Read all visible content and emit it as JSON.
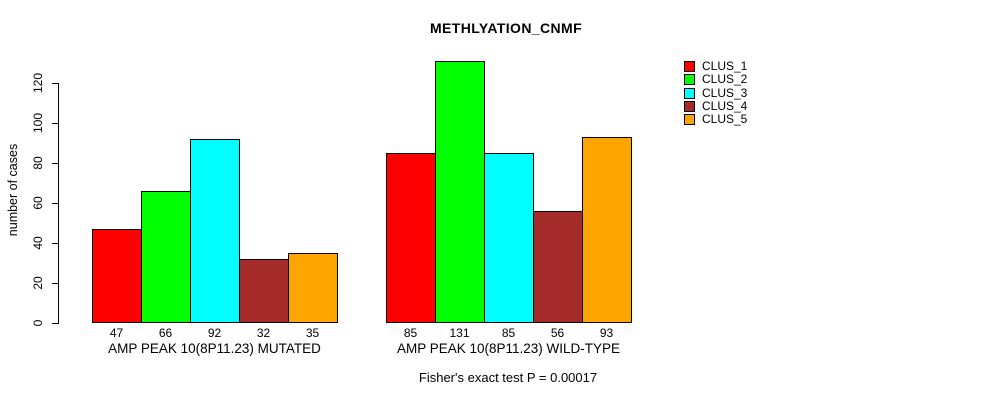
{
  "chart": {
    "title": "METHLYATION_CNMF",
    "y_axis_label": "number of cases",
    "footer": "Fisher's exact test P = 0.00017"
  },
  "chart_data": {
    "type": "bar",
    "title": "METHLYATION_CNMF",
    "xlabel": "",
    "ylabel": "number of cases",
    "ylim": [
      0,
      131
    ],
    "yticks": [
      0,
      20,
      40,
      60,
      80,
      100,
      120
    ],
    "grid": false,
    "legend_position": "top-right",
    "bar_value_labels": true,
    "categories": [
      "AMP PEAK 10(8P11.23) MUTATED",
      "AMP PEAK 10(8P11.23) WILD-TYPE"
    ],
    "series": [
      {
        "name": "CLUS_1",
        "color": "#FF0000",
        "values": [
          47,
          85
        ]
      },
      {
        "name": "CLUS_2",
        "color": "#00FF00",
        "values": [
          66,
          131
        ]
      },
      {
        "name": "CLUS_3",
        "color": "#00FFFF",
        "values": [
          92,
          85
        ]
      },
      {
        "name": "CLUS_4",
        "color": "#A52A2A",
        "values": [
          32,
          56
        ]
      },
      {
        "name": "CLUS_5",
        "color": "#FFA500",
        "values": [
          35,
          93
        ]
      }
    ],
    "annotation": "Fisher's exact test P = 0.00017"
  }
}
